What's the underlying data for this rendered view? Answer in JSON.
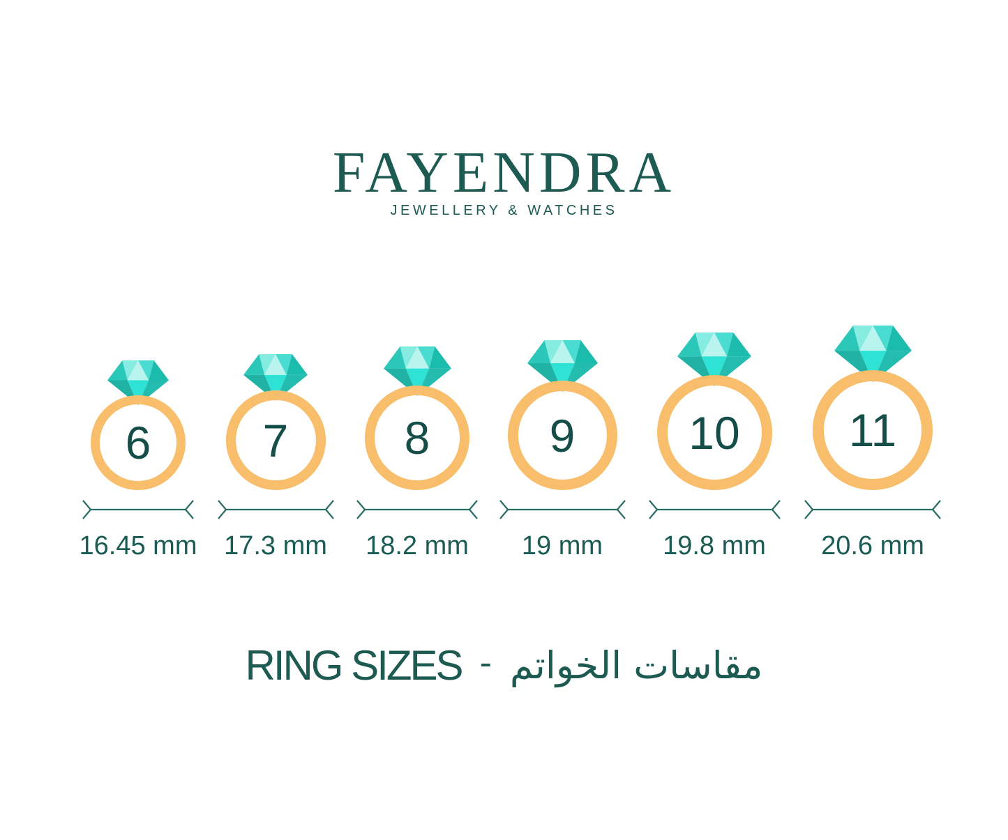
{
  "brand": {
    "name": "FAYENDRA",
    "tagline": "JEWELLERY & WATCHES"
  },
  "rings": [
    {
      "size": "6",
      "diameter_label": "16.45 mm"
    },
    {
      "size": "7",
      "diameter_label": "17.3 mm"
    },
    {
      "size": "8",
      "diameter_label": "18.2 mm"
    },
    {
      "size": "9",
      "diameter_label": "19 mm"
    },
    {
      "size": "10",
      "diameter_label": "19.8 mm"
    },
    {
      "size": "11",
      "diameter_label": "20.6 mm"
    }
  ],
  "footer": {
    "title_en": "RING SIZES",
    "separator": "-",
    "title_ar": "مقاسات الخواتم"
  },
  "icons": {
    "diamond": "diamond-icon",
    "band": "ring-band",
    "arrow": "measure-arrow-icon"
  },
  "colors": {
    "brand_teal": "#1D5A52",
    "label_teal": "#1A5B53",
    "number_teal": "#154E48",
    "band_orange": "#F8BE6B",
    "arrow_teal": "#2B6C64",
    "diamond_facets": [
      "#2BC8BA",
      "#86ECE2",
      "#B9F4EF",
      "#4ADCD0",
      "#1CBCAD",
      "#1FB2A5",
      "#2EE2D5",
      "#23BCAE"
    ]
  }
}
